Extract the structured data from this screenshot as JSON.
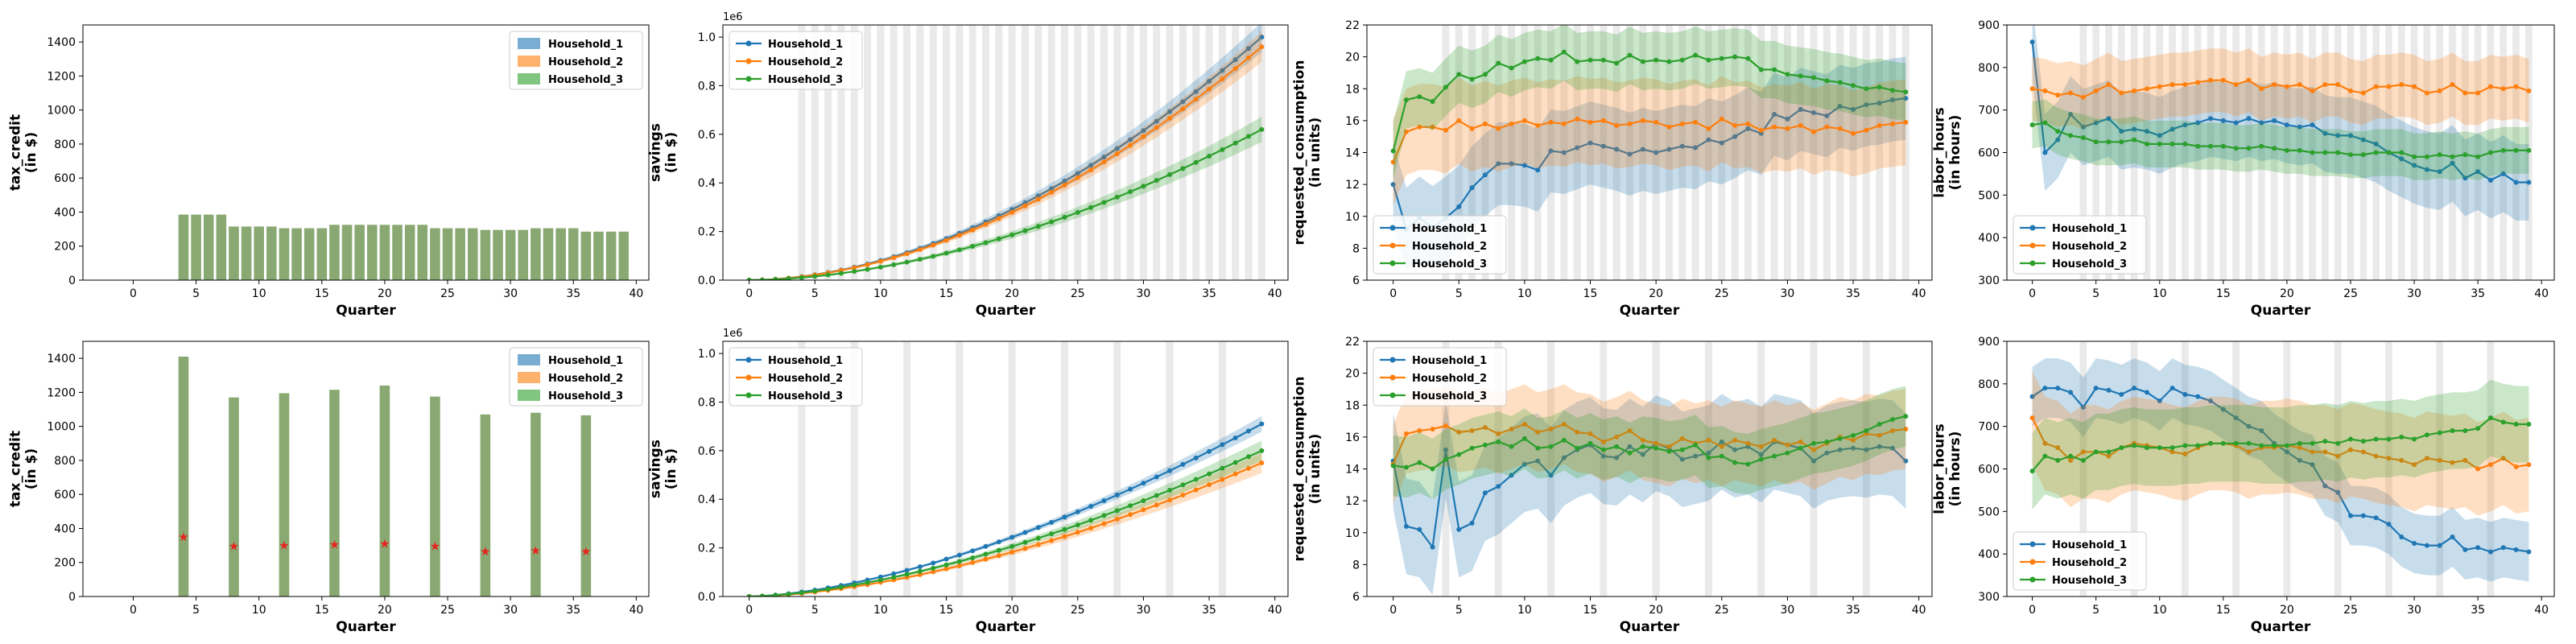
{
  "colors": {
    "Household_1": "#1f77b4",
    "Household_2": "#ff7f0e",
    "Household_3": "#2ca02c",
    "star": "#e8231e",
    "shade": "#d9d9d9"
  },
  "chart_data": [
    {
      "type": "bar",
      "row": 0,
      "col": 0,
      "xlabel": "Quarter",
      "ylabel": [
        "tax_credit",
        "(in $)"
      ],
      "xlim": [
        -4,
        41
      ],
      "ylim": [
        0,
        1500
      ],
      "xticks": [
        0,
        5,
        10,
        15,
        20,
        25,
        30,
        35,
        40
      ],
      "yticks": [
        0,
        200,
        400,
        600,
        800,
        1000,
        1200,
        1400
      ],
      "legend": [
        "Household_1",
        "Household_2",
        "Household_3"
      ],
      "legend_loc": "upper right",
      "x": [
        4,
        5,
        6,
        7,
        8,
        9,
        10,
        11,
        12,
        13,
        14,
        15,
        16,
        17,
        18,
        19,
        20,
        21,
        22,
        23,
        24,
        25,
        26,
        27,
        28,
        29,
        30,
        31,
        32,
        33,
        34,
        35,
        36,
        37,
        38,
        39
      ],
      "values": [
        385,
        385,
        385,
        385,
        315,
        315,
        315,
        315,
        305,
        305,
        305,
        305,
        325,
        325,
        325,
        325,
        325,
        325,
        325,
        325,
        305,
        305,
        305,
        305,
        295,
        295,
        295,
        295,
        305,
        305,
        305,
        305,
        285,
        285,
        285,
        285
      ]
    },
    {
      "type": "line",
      "row": 0,
      "col": 1,
      "xlabel": "Quarter",
      "ylabel": [
        "savings",
        "(in $)"
      ],
      "multiplier": "1e6",
      "xlim": [
        -2,
        41
      ],
      "ylim": [
        0,
        1.05
      ],
      "xticks": [
        0,
        5,
        10,
        15,
        20,
        25,
        30,
        35,
        40
      ],
      "yticks": [
        0.0,
        0.2,
        0.4,
        0.6,
        0.8,
        1.0
      ],
      "legend_loc": "upper left",
      "shade": {
        "start": 4,
        "end": 39,
        "every": 1
      },
      "series": [
        {
          "name": "Household_1",
          "end": 1.0,
          "pow": 1.85,
          "band": 0.06
        },
        {
          "name": "Household_2",
          "end": 0.96,
          "pow": 1.85,
          "band": 0.06
        },
        {
          "name": "Household_3",
          "end": 0.62,
          "pow": 1.8,
          "band": 0.05
        }
      ]
    },
    {
      "type": "line",
      "row": 0,
      "col": 2,
      "xlabel": "Quarter",
      "ylabel": [
        "requested_consumption",
        "(in units)"
      ],
      "xlim": [
        -2,
        41
      ],
      "ylim": [
        6,
        22
      ],
      "xticks": [
        0,
        5,
        10,
        15,
        20,
        25,
        30,
        35,
        40
      ],
      "yticks": [
        6,
        8,
        10,
        12,
        14,
        16,
        18,
        20,
        22
      ],
      "legend_loc": "lower left",
      "shade": {
        "start": 4,
        "end": 39,
        "every": 1
      },
      "series": [
        {
          "name": "Household_1",
          "band": 2.6,
          "values": [
            12,
            9.2,
            9.9,
            9.3,
            9.9,
            10.6,
            11.8,
            12.6,
            13.3,
            13.3,
            13.2,
            12.9,
            14.1,
            14.0,
            14.3,
            14.6,
            14.4,
            14.2,
            13.9,
            14.2,
            14.0,
            14.2,
            14.4,
            14.3,
            14.8,
            14.6,
            15.0,
            15.5,
            15.2,
            16.4,
            16.1,
            16.7,
            16.5,
            16.3,
            16.9,
            16.7,
            17.0,
            17.1,
            17.3,
            17.4
          ]
        },
        {
          "name": "Household_2",
          "band": 2.7,
          "values": [
            13.4,
            15.3,
            15.6,
            15.6,
            15.4,
            16.0,
            15.5,
            15.8,
            15.5,
            15.8,
            16.0,
            15.7,
            15.9,
            15.8,
            16.1,
            15.9,
            16.0,
            15.7,
            15.8,
            16.0,
            15.9,
            15.6,
            15.8,
            15.9,
            15.5,
            16.1,
            15.7,
            15.8,
            15.4,
            15.6,
            15.5,
            15.7,
            15.3,
            15.6,
            15.5,
            15.2,
            15.4,
            15.7,
            15.8,
            15.9
          ]
        },
        {
          "name": "Household_3",
          "band": 1.8,
          "values": [
            14.1,
            17.3,
            17.5,
            17.2,
            18.1,
            18.9,
            18.6,
            18.9,
            19.6,
            19.3,
            19.7,
            19.9,
            19.8,
            20.3,
            19.7,
            19.8,
            19.8,
            19.6,
            20.1,
            19.7,
            19.8,
            19.7,
            19.8,
            20.1,
            19.8,
            19.9,
            20.0,
            19.9,
            19.2,
            19.2,
            18.9,
            18.8,
            18.7,
            18.5,
            18.4,
            18.2,
            18.0,
            18.1,
            17.9,
            17.8
          ]
        }
      ]
    },
    {
      "type": "line",
      "row": 0,
      "col": 3,
      "xlabel": "Quarter",
      "ylabel": [
        "labor_hours",
        "(in hours)"
      ],
      "xlim": [
        -2,
        41
      ],
      "ylim": [
        300,
        900
      ],
      "xticks": [
        0,
        5,
        10,
        15,
        20,
        25,
        30,
        35,
        40
      ],
      "yticks": [
        300,
        400,
        500,
        600,
        700,
        800,
        900
      ],
      "legend_loc": "lower left",
      "shade": {
        "start": 4,
        "end": 39,
        "every": 1
      },
      "series": [
        {
          "name": "Household_1",
          "band": 90,
          "values": [
            860,
            600,
            630,
            690,
            660,
            670,
            680,
            650,
            655,
            650,
            640,
            655,
            665,
            670,
            680,
            675,
            670,
            680,
            670,
            675,
            665,
            660,
            665,
            645,
            640,
            640,
            630,
            620,
            600,
            585,
            570,
            560,
            555,
            575,
            540,
            555,
            535,
            550,
            530,
            530
          ]
        },
        {
          "name": "Household_2",
          "band": 75,
          "values": [
            750,
            745,
            735,
            740,
            730,
            745,
            760,
            740,
            745,
            750,
            755,
            760,
            760,
            765,
            770,
            770,
            760,
            770,
            750,
            760,
            755,
            760,
            745,
            760,
            760,
            745,
            740,
            755,
            755,
            760,
            755,
            740,
            745,
            760,
            740,
            740,
            755,
            750,
            755,
            745
          ]
        },
        {
          "name": "Household_3",
          "band": 55,
          "values": [
            665,
            670,
            650,
            640,
            635,
            625,
            625,
            625,
            630,
            620,
            620,
            620,
            620,
            615,
            615,
            615,
            610,
            610,
            615,
            610,
            605,
            605,
            600,
            600,
            600,
            595,
            595,
            600,
            600,
            600,
            590,
            590,
            595,
            590,
            595,
            590,
            600,
            605,
            605,
            605
          ]
        }
      ]
    },
    {
      "type": "bar",
      "row": 1,
      "col": 0,
      "xlabel": "Quarter",
      "ylabel": [
        "tax_credit",
        "(in $)"
      ],
      "xlim": [
        -4,
        41
      ],
      "ylim": [
        0,
        1500
      ],
      "xticks": [
        0,
        5,
        10,
        15,
        20,
        25,
        30,
        35,
        40
      ],
      "yticks": [
        0,
        200,
        400,
        600,
        800,
        1000,
        1200,
        1400
      ],
      "legend": [
        "Household_1",
        "Household_2",
        "Household_3"
      ],
      "legend_loc": "upper right",
      "x": [
        4,
        8,
        12,
        16,
        20,
        24,
        28,
        32,
        36
      ],
      "values": [
        1410,
        1170,
        1195,
        1215,
        1240,
        1175,
        1070,
        1080,
        1065
      ],
      "stars": [
        350,
        295,
        300,
        305,
        310,
        295,
        265,
        270,
        265
      ]
    },
    {
      "type": "line",
      "row": 1,
      "col": 1,
      "xlabel": "Quarter",
      "ylabel": [
        "savings",
        "(in $)"
      ],
      "multiplier": "1e6",
      "xlim": [
        -2,
        41
      ],
      "ylim": [
        0,
        1.05
      ],
      "xticks": [
        0,
        5,
        10,
        15,
        20,
        25,
        30,
        35,
        40
      ],
      "yticks": [
        0.0,
        0.2,
        0.4,
        0.6,
        0.8,
        1.0
      ],
      "legend_loc": "upper left",
      "shade": {
        "start": 4,
        "end": 39,
        "every": 4
      },
      "series": [
        {
          "name": "Household_1",
          "end": 0.71,
          "pow": 1.6,
          "band": 0.03
        },
        {
          "name": "Household_2",
          "end": 0.55,
          "pow": 1.65,
          "band": 0.04
        },
        {
          "name": "Household_3",
          "end": 0.6,
          "pow": 1.6,
          "band": 0.04
        }
      ]
    },
    {
      "type": "line",
      "row": 1,
      "col": 2,
      "xlabel": "Quarter",
      "ylabel": [
        "requested_consumption",
        "(in units)"
      ],
      "xlim": [
        -2,
        41
      ],
      "ylim": [
        6,
        22
      ],
      "xticks": [
        0,
        5,
        10,
        15,
        20,
        25,
        30,
        35,
        40
      ],
      "yticks": [
        6,
        8,
        10,
        12,
        14,
        16,
        18,
        20,
        22
      ],
      "legend_loc": "upper left",
      "shade": {
        "start": 4,
        "end": 39,
        "every": 4
      },
      "series": [
        {
          "name": "Household_1",
          "band": 3.0,
          "values": [
            14.5,
            10.4,
            10.2,
            9.1,
            15.2,
            10.2,
            10.6,
            12.5,
            12.9,
            13.6,
            14.3,
            14.5,
            13.6,
            14.7,
            15.2,
            15.5,
            14.8,
            14.7,
            15.4,
            14.9,
            15.6,
            15.3,
            14.6,
            14.8,
            15.0,
            15.7,
            15.2,
            15.4,
            14.9,
            15.7,
            15.5,
            15.3,
            14.5,
            15.0,
            15.2,
            15.3,
            15.2,
            15.4,
            15.3,
            14.5
          ]
        },
        {
          "name": "Household_2",
          "band": 2.5,
          "values": [
            14.3,
            16.2,
            16.4,
            16.5,
            16.7,
            16.3,
            16.4,
            16.6,
            16.2,
            16.5,
            16.8,
            16.3,
            16.5,
            16.8,
            16.3,
            16.2,
            15.7,
            16.0,
            16.4,
            15.8,
            15.6,
            15.4,
            15.9,
            15.6,
            15.8,
            15.4,
            15.8,
            15.6,
            15.4,
            15.8,
            15.5,
            15.7,
            15.2,
            15.6,
            16.0,
            15.8,
            16.2,
            16.1,
            16.4,
            16.5
          ]
        },
        {
          "name": "Household_3",
          "band": 1.9,
          "values": [
            14.2,
            14.1,
            14.4,
            14.0,
            14.6,
            14.9,
            15.3,
            15.5,
            15.7,
            15.4,
            15.9,
            15.3,
            15.4,
            15.8,
            15.3,
            15.6,
            15.2,
            15.4,
            15.0,
            15.4,
            15.3,
            15.1,
            15.2,
            15.5,
            14.7,
            14.8,
            14.4,
            14.3,
            14.6,
            14.8,
            15.0,
            15.3,
            15.6,
            15.7,
            15.9,
            16.1,
            16.4,
            16.8,
            17.1,
            17.3
          ]
        }
      ]
    },
    {
      "type": "line",
      "row": 1,
      "col": 3,
      "xlabel": "Quarter",
      "ylabel": [
        "labor_hours",
        "(in hours)"
      ],
      "xlim": [
        -2,
        41
      ],
      "ylim": [
        300,
        900
      ],
      "xticks": [
        0,
        5,
        10,
        15,
        20,
        25,
        30,
        35,
        40
      ],
      "yticks": [
        300,
        400,
        500,
        600,
        700,
        800,
        900
      ],
      "legend_loc": "lower left",
      "shade": {
        "start": 4,
        "end": 39,
        "every": 4
      },
      "series": [
        {
          "name": "Household_1",
          "band": 70,
          "values": [
            770,
            790,
            790,
            780,
            745,
            790,
            785,
            775,
            790,
            780,
            760,
            790,
            775,
            770,
            760,
            740,
            720,
            700,
            690,
            660,
            640,
            620,
            610,
            560,
            545,
            490,
            490,
            485,
            470,
            440,
            425,
            420,
            420,
            440,
            410,
            415,
            405,
            415,
            410,
            405
          ]
        },
        {
          "name": "Household_2",
          "band": 110,
          "values": [
            720,
            660,
            650,
            620,
            640,
            640,
            630,
            650,
            660,
            655,
            650,
            640,
            635,
            650,
            660,
            660,
            655,
            640,
            650,
            650,
            655,
            650,
            640,
            640,
            630,
            645,
            640,
            630,
            625,
            620,
            610,
            625,
            620,
            615,
            620,
            600,
            610,
            625,
            605,
            610
          ]
        },
        {
          "name": "Household_3",
          "band": 90,
          "values": [
            595,
            630,
            620,
            630,
            620,
            640,
            640,
            650,
            655,
            650,
            650,
            650,
            655,
            655,
            660,
            660,
            660,
            660,
            655,
            655,
            655,
            660,
            660,
            665,
            660,
            670,
            665,
            670,
            670,
            675,
            670,
            680,
            685,
            690,
            690,
            695,
            720,
            710,
            705,
            705
          ]
        }
      ]
    }
  ]
}
